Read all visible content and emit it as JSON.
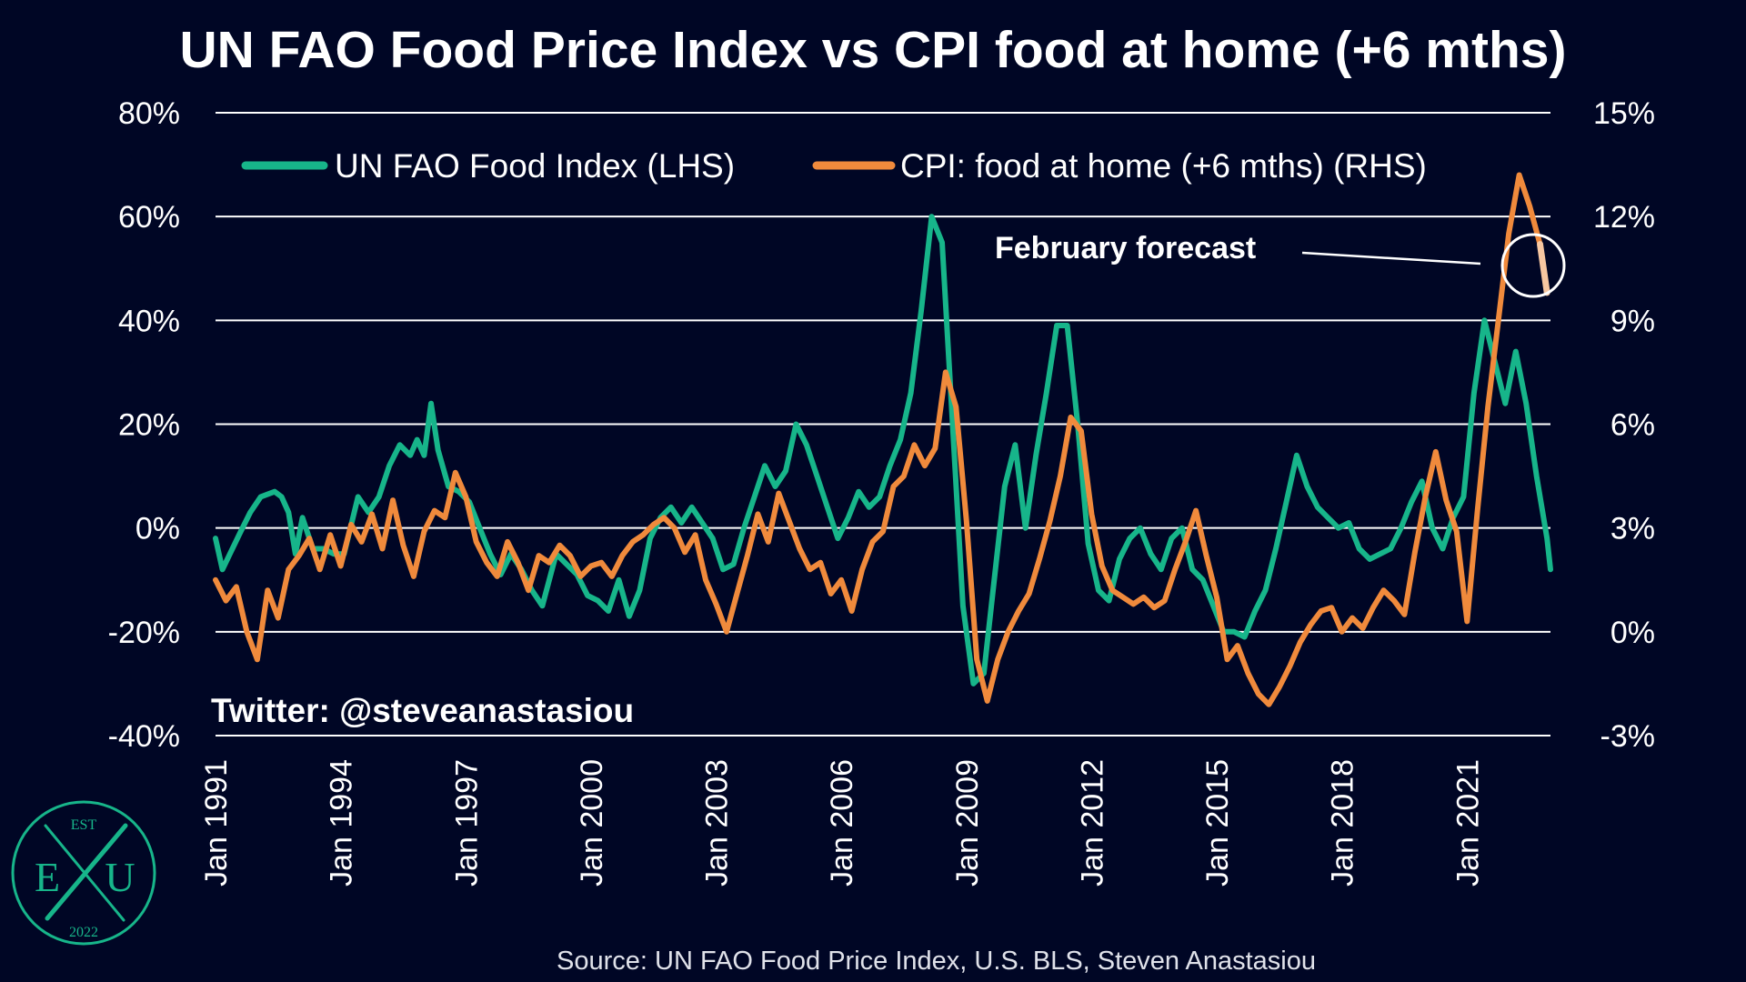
{
  "title": "UN FAO Food Price Index vs CPI food at home (+6 mths)",
  "source": "Source: UN FAO Food Price Index, U.S. BLS, Steven Anastasiou",
  "twitter": "Twitter: @steveanastasiou",
  "annotation": "February forecast",
  "logo": {
    "top": "EST",
    "left": "E",
    "right": "U",
    "bottom": "2022"
  },
  "colors": {
    "background": "#000625",
    "fao": "#17b58a",
    "cpi": "#f08a3c",
    "forecast": "#f7c7a1",
    "grid": "#ffffff",
    "text": "#ffffff"
  },
  "chart_data": {
    "type": "line",
    "title": "UN FAO Food Price Index vs CPI food at home (+6 mths)",
    "x_range": [
      "1991-01",
      "2023-01"
    ],
    "x_tick_labels": [
      "Jan 1991",
      "Jan 1994",
      "Jan 1997",
      "Jan 2000",
      "Jan 2003",
      "Jan 2006",
      "Jan 2009",
      "Jan 2012",
      "Jan 2015",
      "Jan 2018",
      "Jan 2021"
    ],
    "y_left": {
      "range": [
        -40,
        80
      ],
      "ticks": [
        80,
        60,
        40,
        20,
        0,
        -20,
        -40
      ],
      "tick_labels": [
        "80%",
        "60%",
        "40%",
        "20%",
        "0%",
        "-20%",
        "-40%"
      ]
    },
    "y_right": {
      "range": [
        -3,
        15
      ],
      "ticks": [
        15,
        12,
        9,
        6,
        3,
        0,
        -3
      ],
      "tick_labels": [
        "15%",
        "12%",
        "9%",
        "6%",
        "3%",
        "0%",
        "-3%"
      ]
    },
    "grid": true,
    "legend_position": "top",
    "series": [
      {
        "name": "UN FAO Food Index (LHS)",
        "axis": "left",
        "color": "#17b58a",
        "points": [
          [
            "1991-01",
            -2
          ],
          [
            "1991-03",
            -8
          ],
          [
            "1991-08",
            -1
          ],
          [
            "1991-11",
            3
          ],
          [
            "1992-02",
            6
          ],
          [
            "1992-06",
            7
          ],
          [
            "1992-08",
            6
          ],
          [
            "1992-10",
            3
          ],
          [
            "1992-12",
            -5
          ],
          [
            "1993-02",
            2
          ],
          [
            "1993-05",
            -4
          ],
          [
            "1993-08",
            -4
          ],
          [
            "1993-11",
            -5
          ],
          [
            "1994-02",
            -5
          ],
          [
            "1994-06",
            6
          ],
          [
            "1994-09",
            3
          ],
          [
            "1994-12",
            6
          ],
          [
            "1995-03",
            12
          ],
          [
            "1995-06",
            16
          ],
          [
            "1995-09",
            14
          ],
          [
            "1995-11",
            17
          ],
          [
            "1996-01",
            14
          ],
          [
            "1996-03",
            24
          ],
          [
            "1996-05",
            15
          ],
          [
            "1996-08",
            8
          ],
          [
            "1996-11",
            7
          ],
          [
            "1997-02",
            5
          ],
          [
            "1997-05",
            0
          ],
          [
            "1997-08",
            -5
          ],
          [
            "1997-11",
            -9
          ],
          [
            "1998-02",
            -5
          ],
          [
            "1998-05",
            -8
          ],
          [
            "1998-08",
            -12
          ],
          [
            "1998-11",
            -15
          ],
          [
            "1999-03",
            -5
          ],
          [
            "1999-06",
            -7
          ],
          [
            "1999-09",
            -9
          ],
          [
            "1999-12",
            -13
          ],
          [
            "2000-03",
            -14
          ],
          [
            "2000-06",
            -16
          ],
          [
            "2000-09",
            -10
          ],
          [
            "2000-12",
            -17
          ],
          [
            "2001-03",
            -12
          ],
          [
            "2001-06",
            -2
          ],
          [
            "2001-09",
            2
          ],
          [
            "2001-12",
            4
          ],
          [
            "2002-03",
            1
          ],
          [
            "2002-06",
            4
          ],
          [
            "2002-09",
            1
          ],
          [
            "2002-12",
            -2
          ],
          [
            "2003-03",
            -8
          ],
          [
            "2003-06",
            -7
          ],
          [
            "2003-09",
            0
          ],
          [
            "2003-12",
            6
          ],
          [
            "2004-03",
            12
          ],
          [
            "2004-06",
            8
          ],
          [
            "2004-09",
            11
          ],
          [
            "2004-12",
            20
          ],
          [
            "2005-03",
            16
          ],
          [
            "2005-06",
            10
          ],
          [
            "2005-09",
            4
          ],
          [
            "2005-12",
            -2
          ],
          [
            "2006-03",
            2
          ],
          [
            "2006-06",
            7
          ],
          [
            "2006-09",
            4
          ],
          [
            "2006-12",
            6
          ],
          [
            "2007-03",
            12
          ],
          [
            "2007-06",
            17
          ],
          [
            "2007-09",
            26
          ],
          [
            "2007-12",
            42
          ],
          [
            "2008-03",
            60
          ],
          [
            "2008-06",
            55
          ],
          [
            "2008-09",
            20
          ],
          [
            "2008-12",
            -15
          ],
          [
            "2009-03",
            -30
          ],
          [
            "2009-06",
            -28
          ],
          [
            "2009-09",
            -10
          ],
          [
            "2009-12",
            8
          ],
          [
            "2010-03",
            16
          ],
          [
            "2010-06",
            0
          ],
          [
            "2010-09",
            14
          ],
          [
            "2010-12",
            26
          ],
          [
            "2011-03",
            39
          ],
          [
            "2011-06",
            39
          ],
          [
            "2011-09",
            20
          ],
          [
            "2011-12",
            -3
          ],
          [
            "2012-03",
            -12
          ],
          [
            "2012-06",
            -14
          ],
          [
            "2012-09",
            -6
          ],
          [
            "2012-12",
            -2
          ],
          [
            "2013-03",
            0
          ],
          [
            "2013-06",
            -5
          ],
          [
            "2013-09",
            -8
          ],
          [
            "2013-12",
            -2
          ],
          [
            "2014-03",
            0
          ],
          [
            "2014-06",
            -8
          ],
          [
            "2014-09",
            -10
          ],
          [
            "2014-12",
            -15
          ],
          [
            "2015-03",
            -20
          ],
          [
            "2015-06",
            -20
          ],
          [
            "2015-09",
            -21
          ],
          [
            "2015-12",
            -16
          ],
          [
            "2016-03",
            -12
          ],
          [
            "2016-06",
            -4
          ],
          [
            "2016-09",
            5
          ],
          [
            "2016-12",
            14
          ],
          [
            "2017-03",
            8
          ],
          [
            "2017-06",
            4
          ],
          [
            "2017-09",
            2
          ],
          [
            "2017-12",
            0
          ],
          [
            "2018-03",
            1
          ],
          [
            "2018-06",
            -4
          ],
          [
            "2018-09",
            -6
          ],
          [
            "2018-12",
            -5
          ],
          [
            "2019-03",
            -4
          ],
          [
            "2019-06",
            0
          ],
          [
            "2019-09",
            5
          ],
          [
            "2019-12",
            9
          ],
          [
            "2020-03",
            0
          ],
          [
            "2020-06",
            -4
          ],
          [
            "2020-09",
            2
          ],
          [
            "2020-12",
            6
          ],
          [
            "2021-03",
            26
          ],
          [
            "2021-06",
            40
          ],
          [
            "2021-09",
            32
          ],
          [
            "2021-12",
            24
          ],
          [
            "2022-03",
            34
          ],
          [
            "2022-06",
            24
          ],
          [
            "2022-09",
            10
          ],
          [
            "2022-12",
            -2
          ],
          [
            "2023-01",
            -8
          ]
        ]
      },
      {
        "name": "CPI: food at home (+6 mths) (RHS)",
        "axis": "right",
        "color": "#f08a3c",
        "points": [
          [
            "1991-01",
            1.5
          ],
          [
            "1991-04",
            0.9
          ],
          [
            "1991-07",
            1.3
          ],
          [
            "1991-10",
            0.0
          ],
          [
            "1992-01",
            -0.8
          ],
          [
            "1992-04",
            1.2
          ],
          [
            "1992-07",
            0.4
          ],
          [
            "1992-10",
            1.8
          ],
          [
            "1993-01",
            2.2
          ],
          [
            "1993-04",
            2.7
          ],
          [
            "1993-07",
            1.8
          ],
          [
            "1993-10",
            2.8
          ],
          [
            "1994-01",
            1.9
          ],
          [
            "1994-04",
            3.1
          ],
          [
            "1994-07",
            2.6
          ],
          [
            "1994-10",
            3.4
          ],
          [
            "1995-01",
            2.4
          ],
          [
            "1995-04",
            3.8
          ],
          [
            "1995-07",
            2.5
          ],
          [
            "1995-10",
            1.6
          ],
          [
            "1996-01",
            2.9
          ],
          [
            "1996-04",
            3.5
          ],
          [
            "1996-07",
            3.3
          ],
          [
            "1996-10",
            4.6
          ],
          [
            "1997-01",
            3.9
          ],
          [
            "1997-04",
            2.6
          ],
          [
            "1997-07",
            2.0
          ],
          [
            "1997-10",
            1.6
          ],
          [
            "1998-01",
            2.6
          ],
          [
            "1998-04",
            2.0
          ],
          [
            "1998-07",
            1.2
          ],
          [
            "1998-10",
            2.2
          ],
          [
            "1999-01",
            2.0
          ],
          [
            "1999-04",
            2.5
          ],
          [
            "1999-07",
            2.2
          ],
          [
            "1999-10",
            1.6
          ],
          [
            "2000-01",
            1.9
          ],
          [
            "2000-04",
            2.0
          ],
          [
            "2000-07",
            1.6
          ],
          [
            "2000-10",
            2.2
          ],
          [
            "2001-01",
            2.6
          ],
          [
            "2001-04",
            2.8
          ],
          [
            "2001-07",
            3.1
          ],
          [
            "2001-10",
            3.3
          ],
          [
            "2002-01",
            3.0
          ],
          [
            "2002-04",
            2.3
          ],
          [
            "2002-07",
            2.8
          ],
          [
            "2002-10",
            1.5
          ],
          [
            "2003-01",
            0.8
          ],
          [
            "2003-04",
            0.0
          ],
          [
            "2003-07",
            1.1
          ],
          [
            "2003-10",
            2.2
          ],
          [
            "2004-01",
            3.4
          ],
          [
            "2004-04",
            2.6
          ],
          [
            "2004-07",
            4.0
          ],
          [
            "2004-10",
            3.2
          ],
          [
            "2005-01",
            2.4
          ],
          [
            "2005-04",
            1.8
          ],
          [
            "2005-07",
            2.0
          ],
          [
            "2005-10",
            1.1
          ],
          [
            "2006-01",
            1.5
          ],
          [
            "2006-04",
            0.6
          ],
          [
            "2006-07",
            1.8
          ],
          [
            "2006-10",
            2.6
          ],
          [
            "2007-01",
            2.9
          ],
          [
            "2007-04",
            4.2
          ],
          [
            "2007-07",
            4.5
          ],
          [
            "2007-10",
            5.4
          ],
          [
            "2008-01",
            4.8
          ],
          [
            "2008-04",
            5.3
          ],
          [
            "2008-07",
            7.5
          ],
          [
            "2008-10",
            6.5
          ],
          [
            "2009-01",
            3.2
          ],
          [
            "2009-04",
            -0.8
          ],
          [
            "2009-07",
            -2.0
          ],
          [
            "2009-10",
            -0.8
          ],
          [
            "2010-01",
            0.0
          ],
          [
            "2010-04",
            0.6
          ],
          [
            "2010-07",
            1.1
          ],
          [
            "2010-10",
            2.1
          ],
          [
            "2011-01",
            3.2
          ],
          [
            "2011-04",
            4.5
          ],
          [
            "2011-07",
            6.2
          ],
          [
            "2011-10",
            5.8
          ],
          [
            "2012-01",
            3.4
          ],
          [
            "2012-04",
            1.9
          ],
          [
            "2012-07",
            1.2
          ],
          [
            "2012-10",
            1.0
          ],
          [
            "2013-01",
            0.8
          ],
          [
            "2013-04",
            1.0
          ],
          [
            "2013-07",
            0.7
          ],
          [
            "2013-10",
            0.9
          ],
          [
            "2014-01",
            1.8
          ],
          [
            "2014-04",
            2.6
          ],
          [
            "2014-07",
            3.5
          ],
          [
            "2014-10",
            2.2
          ],
          [
            "2015-01",
            1.0
          ],
          [
            "2015-04",
            -0.8
          ],
          [
            "2015-07",
            -0.4
          ],
          [
            "2015-10",
            -1.2
          ],
          [
            "2016-01",
            -1.8
          ],
          [
            "2016-04",
            -2.1
          ],
          [
            "2016-07",
            -1.6
          ],
          [
            "2016-10",
            -1.0
          ],
          [
            "2017-01",
            -0.3
          ],
          [
            "2017-04",
            0.2
          ],
          [
            "2017-07",
            0.6
          ],
          [
            "2017-10",
            0.7
          ],
          [
            "2018-01",
            0.0
          ],
          [
            "2018-04",
            0.4
          ],
          [
            "2018-07",
            0.1
          ],
          [
            "2018-10",
            0.7
          ],
          [
            "2019-01",
            1.2
          ],
          [
            "2019-04",
            0.9
          ],
          [
            "2019-07",
            0.5
          ],
          [
            "2019-10",
            2.3
          ],
          [
            "2020-01",
            3.9
          ],
          [
            "2020-04",
            5.2
          ],
          [
            "2020-07",
            3.8
          ],
          [
            "2020-10",
            2.9
          ],
          [
            "2021-01",
            0.3
          ],
          [
            "2021-04",
            3.5
          ],
          [
            "2021-07",
            6.5
          ],
          [
            "2021-10",
            9.0
          ],
          [
            "2022-01",
            11.5
          ],
          [
            "2022-04",
            13.2
          ],
          [
            "2022-07",
            12.3
          ],
          [
            "2022-10",
            11.2
          ]
        ]
      },
      {
        "name": "February forecast",
        "axis": "right",
        "color": "#f7c7a1",
        "points": [
          [
            "2022-10",
            11.2
          ],
          [
            "2022-12",
            9.8
          ]
        ]
      }
    ]
  }
}
